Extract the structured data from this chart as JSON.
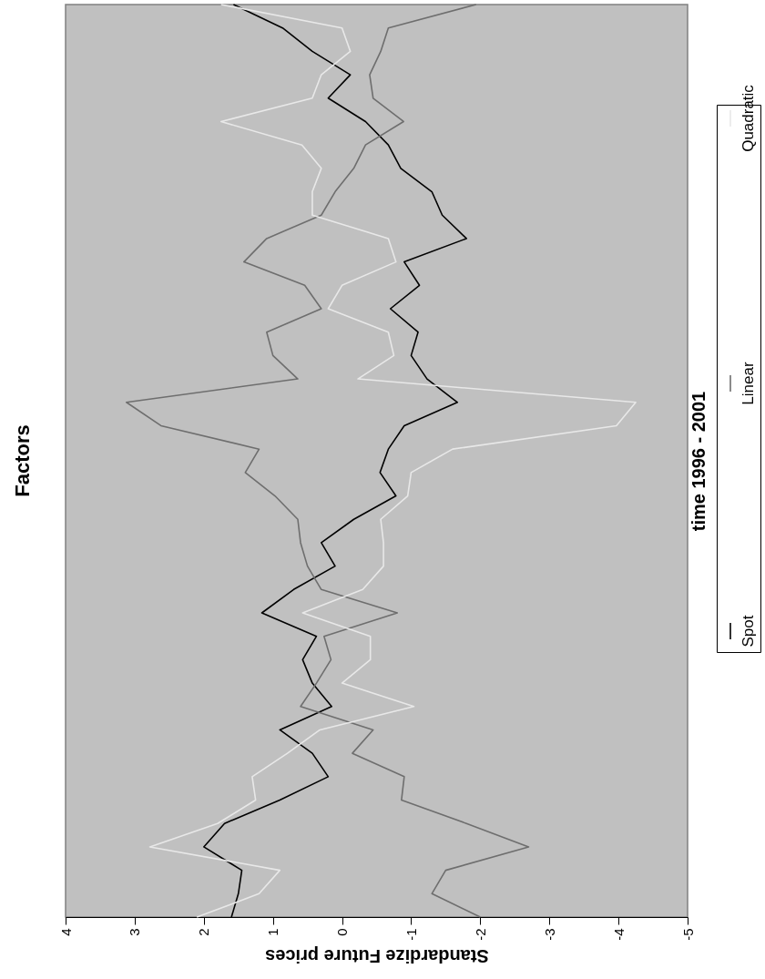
{
  "chart_data": {
    "type": "line",
    "orientation": "horizontal",
    "title": "Factors",
    "xlabel": "Standardize Future prices",
    "ylabel": "time 1996 - 2001",
    "categories": [
      null,
      null,
      null,
      null,
      null,
      null,
      null,
      null,
      null,
      null,
      null,
      null,
      null,
      null,
      null,
      null,
      null,
      null,
      null,
      null,
      null,
      null,
      null,
      null,
      null,
      null,
      null,
      null,
      null,
      null,
      null,
      null,
      null,
      null,
      null,
      null,
      null,
      null,
      null,
      null
    ],
    "series": [
      {
        "name": "Spot",
        "color": "#000000",
        "values": [
          1.57,
          0.86,
          0.43,
          -0.12,
          0.2,
          -0.34,
          -0.67,
          -0.85,
          -1.3,
          -1.45,
          -1.8,
          -0.9,
          -1.12,
          -0.7,
          -1.1,
          -1.0,
          -1.23,
          -1.67,
          -0.9,
          -0.67,
          -0.55,
          -0.78,
          -0.17,
          0.3,
          0.1,
          0.7,
          1.16,
          0.37,
          0.57,
          0.43,
          0.15,
          0.9,
          0.43,
          0.2,
          0.9,
          1.7,
          2.0,
          1.45,
          1.5,
          1.6
        ]
      },
      {
        "name": "Linear",
        "color": "#6e6e6e",
        "values": [
          -1.94,
          -0.67,
          -0.56,
          -0.4,
          -0.45,
          -0.89,
          -0.34,
          -0.17,
          0.1,
          0.3,
          1.09,
          1.42,
          0.54,
          0.3,
          1.09,
          1.0,
          0.64,
          3.12,
          2.62,
          1.2,
          1.4,
          0.97,
          0.64,
          0.6,
          0.5,
          0.3,
          -0.8,
          0.26,
          0.16,
          0.37,
          0.6,
          -0.45,
          -0.15,
          -0.9,
          -0.86,
          -1.8,
          -2.7,
          -1.5,
          -1.3,
          -2.0
        ]
      },
      {
        "name": "Quadratic",
        "color": "#e8e8e8",
        "values": [
          1.75,
          0.0,
          -0.12,
          0.3,
          0.43,
          1.75,
          0.58,
          0.3,
          0.43,
          0.43,
          -0.67,
          -0.78,
          0.0,
          0.2,
          -0.67,
          -0.75,
          -0.23,
          -4.25,
          -3.97,
          -1.6,
          -1.0,
          -0.95,
          -0.56,
          -0.6,
          -0.6,
          -0.3,
          0.57,
          -0.41,
          -0.41,
          0.0,
          -1.04,
          0.32,
          0.79,
          1.3,
          1.25,
          1.8,
          2.78,
          0.9,
          1.2,
          2.1
        ]
      }
    ],
    "xlim": [
      4,
      -5
    ],
    "xticks": [
      4,
      3,
      2,
      1,
      0,
      -1,
      -2,
      -3,
      -4,
      -5
    ],
    "legend": "right"
  }
}
